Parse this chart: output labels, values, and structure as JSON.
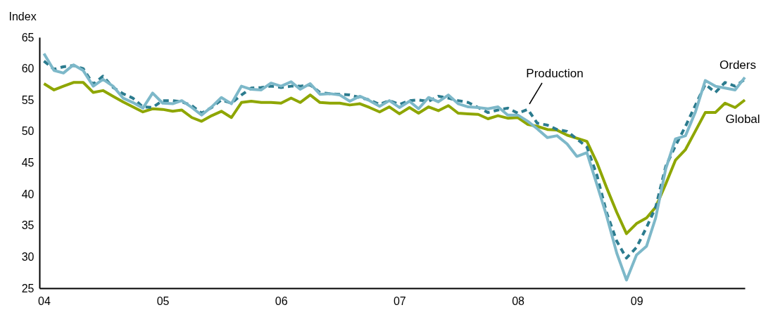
{
  "chart_data": {
    "type": "line",
    "ylabel": "Index",
    "x": [
      "2004-01",
      "2004-02",
      "2004-03",
      "2004-04",
      "2004-05",
      "2004-06",
      "2004-07",
      "2004-08",
      "2004-09",
      "2004-10",
      "2004-11",
      "2004-12",
      "2005-01",
      "2005-02",
      "2005-03",
      "2005-04",
      "2005-05",
      "2005-06",
      "2005-07",
      "2005-08",
      "2005-09",
      "2005-10",
      "2005-11",
      "2005-12",
      "2006-01",
      "2006-02",
      "2006-03",
      "2006-04",
      "2006-05",
      "2006-06",
      "2006-07",
      "2006-08",
      "2006-09",
      "2006-10",
      "2006-11",
      "2006-12",
      "2007-01",
      "2007-02",
      "2007-03",
      "2007-04",
      "2007-05",
      "2007-06",
      "2007-07",
      "2007-08",
      "2007-09",
      "2007-10",
      "2007-11",
      "2007-12",
      "2008-01",
      "2008-02",
      "2008-03",
      "2008-04",
      "2008-05",
      "2008-06",
      "2008-07",
      "2008-08",
      "2008-09",
      "2008-10",
      "2008-11",
      "2008-12",
      "2009-01",
      "2009-02",
      "2009-03",
      "2009-04",
      "2009-05",
      "2009-06",
      "2009-07",
      "2009-08",
      "2009-09",
      "2009-10",
      "2009-11",
      "2009-12"
    ],
    "series": [
      {
        "name": "Global",
        "color": "#8ea600",
        "line_style": "solid",
        "values": [
          57.6,
          56.6,
          57.2,
          57.8,
          57.8,
          56.2,
          56.5,
          55.6,
          54.7,
          53.9,
          53.1,
          53.6,
          53.5,
          53.2,
          53.4,
          52.2,
          51.6,
          52.5,
          53.2,
          52.2,
          54.6,
          54.8,
          54.6,
          54.6,
          54.5,
          55.3,
          54.6,
          55.8,
          54.6,
          54.5,
          54.5,
          54.2,
          54.4,
          53.8,
          53.1,
          53.9,
          52.8,
          53.8,
          52.9,
          53.9,
          53.3,
          54.1,
          52.9,
          52.8,
          52.7,
          52.0,
          52.5,
          52.1,
          52.2,
          51.1,
          50.8,
          50.3,
          50.2,
          49.4,
          48.9,
          48.4,
          45.0,
          41.0,
          37.1,
          33.7,
          35.3,
          36.2,
          37.9,
          41.6,
          45.4,
          47.1,
          50.0,
          53.0,
          53.0,
          54.5,
          53.8,
          55.0
        ]
      },
      {
        "name": "Production",
        "color": "#2b7b8e",
        "line_style": "dashed",
        "values": [
          61.2,
          59.9,
          60.3,
          60.5,
          60.0,
          57.5,
          58.8,
          57.0,
          56.0,
          55.3,
          53.9,
          53.8,
          54.9,
          54.9,
          54.7,
          54.1,
          52.9,
          53.8,
          55.0,
          54.5,
          55.8,
          56.9,
          57.0,
          57.2,
          57.0,
          57.2,
          57.2,
          57.4,
          56.2,
          56.0,
          55.9,
          55.8,
          55.4,
          55.0,
          54.3,
          54.9,
          54.3,
          54.9,
          55.0,
          54.8,
          55.6,
          55.3,
          54.9,
          54.6,
          53.8,
          53.0,
          53.4,
          53.7,
          52.9,
          53.5,
          51.3,
          51.0,
          50.3,
          50.0,
          48.8,
          47.5,
          43.0,
          37.0,
          32.5,
          29.8,
          31.5,
          34.7,
          37.9,
          44.4,
          47.7,
          50.8,
          54.1,
          57.5,
          56.2,
          57.8,
          57.2,
          58.3
        ]
      },
      {
        "name": "Orders",
        "color": "#7db8c9",
        "line_style": "solid",
        "values": [
          62.4,
          59.7,
          59.3,
          60.6,
          59.7,
          57.2,
          58.3,
          57.2,
          55.3,
          54.6,
          53.7,
          56.1,
          54.5,
          54.4,
          54.9,
          53.8,
          52.6,
          53.9,
          55.4,
          54.4,
          57.2,
          56.7,
          56.6,
          57.7,
          57.2,
          57.9,
          56.7,
          57.6,
          55.9,
          56.0,
          55.8,
          54.8,
          55.6,
          54.9,
          54.0,
          54.9,
          53.8,
          54.8,
          53.6,
          55.4,
          54.7,
          55.8,
          54.4,
          53.9,
          53.8,
          53.6,
          53.9,
          52.6,
          52.6,
          51.6,
          50.4,
          49.0,
          49.3,
          48.0,
          46.0,
          46.6,
          41.5,
          36.5,
          30.6,
          26.3,
          30.3,
          31.7,
          36.2,
          44.0,
          48.8,
          49.3,
          53.0,
          58.1,
          57.2,
          56.9,
          56.6,
          58.6
        ]
      }
    ],
    "xlim": [
      "2003-12-18",
      "2009-12-01"
    ],
    "xticks": [
      {
        "value": "2004-01",
        "label": "04"
      },
      {
        "value": "2005-01",
        "label": "05"
      },
      {
        "value": "2006-01",
        "label": "06"
      },
      {
        "value": "2007-01",
        "label": "07"
      },
      {
        "value": "2008-01",
        "label": "08"
      },
      {
        "value": "2009-01",
        "label": "09"
      }
    ],
    "ylim": [
      25,
      65
    ],
    "yticks": [
      25,
      30,
      35,
      40,
      45,
      50,
      55,
      60,
      65
    ]
  }
}
